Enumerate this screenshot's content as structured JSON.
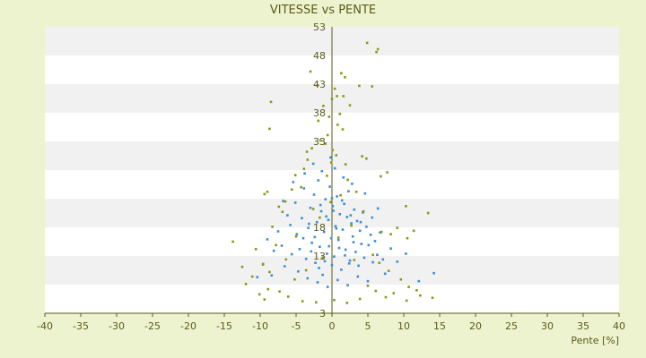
{
  "chart_data": {
    "type": "scatter",
    "title": "VITESSE vs PENTE",
    "xlabel": "Pente [%]",
    "ylabel": "",
    "xlim": [
      -40,
      40
    ],
    "ylim": [
      3,
      53
    ],
    "x_ticks": [
      -40,
      -35,
      -30,
      -25,
      -20,
      -15,
      -10,
      -5,
      0,
      5,
      10,
      15,
      20,
      25,
      30,
      35,
      40
    ],
    "y_ticks": [
      3,
      8,
      13,
      18,
      23,
      28,
      33,
      38,
      43,
      48,
      53
    ],
    "y_tick_labels": [
      "3",
      "",
      "13",
      "18",
      "",
      "",
      "33",
      "38",
      "43",
      "48",
      "53"
    ],
    "grid": "horizontal alternating bands",
    "series": [
      {
        "color": "#3a8fd8",
        "description_hidden": true,
        "points": [
          [
            -6.2,
            20.1
          ],
          [
            -5.8,
            18.4
          ],
          [
            -5.1,
            22.3
          ],
          [
            -4.9,
            16.8
          ],
          [
            -4.5,
            14.2
          ],
          [
            -4.2,
            19.6
          ],
          [
            -3.9,
            24.8
          ],
          [
            -3.6,
            12.5
          ],
          [
            -3.3,
            17.9
          ],
          [
            -3.0,
            21.4
          ],
          [
            -2.8,
            15.3
          ],
          [
            -2.5,
            23.7
          ],
          [
            -2.3,
            11.8
          ],
          [
            -2.1,
            18.9
          ],
          [
            -1.9,
            26.2
          ],
          [
            -1.7,
            14.6
          ],
          [
            -1.5,
            20.8
          ],
          [
            -1.3,
            9.7
          ],
          [
            -1.1,
            17.2
          ],
          [
            -0.9,
            22.9
          ],
          [
            -0.7,
            13.4
          ],
          [
            -0.5,
            19.3
          ],
          [
            -0.3,
            25.1
          ],
          [
            -0.1,
            16.1
          ],
          [
            0.1,
            21.7
          ],
          [
            0.3,
            12.9
          ],
          [
            0.5,
            18.2
          ],
          [
            0.7,
            23.4
          ],
          [
            0.9,
            15.8
          ],
          [
            1.1,
            20.3
          ],
          [
            1.3,
            10.6
          ],
          [
            1.5,
            17.6
          ],
          [
            1.7,
            22.1
          ],
          [
            1.9,
            14.1
          ],
          [
            2.1,
            19.8
          ],
          [
            2.3,
            24.3
          ],
          [
            2.5,
            12.2
          ],
          [
            2.7,
            18.7
          ],
          [
            2.9,
            16.4
          ],
          [
            3.1,
            21.1
          ],
          [
            3.3,
            13.7
          ],
          [
            3.5,
            19.1
          ],
          [
            3.7,
            11.3
          ],
          [
            3.9,
            17.4
          ],
          [
            4.1,
            15.1
          ],
          [
            4.3,
            20.6
          ],
          [
            4.5,
            12.7
          ],
          [
            4.8,
            18.1
          ],
          [
            5.1,
            14.9
          ],
          [
            5.4,
            16.7
          ],
          [
            5.7,
            11.9
          ],
          [
            6.0,
            15.6
          ],
          [
            6.3,
            13.2
          ],
          [
            6.7,
            17.1
          ],
          [
            7.1,
            12.4
          ],
          [
            -7.0,
            14.8
          ],
          [
            -6.6,
            11.2
          ],
          [
            -7.5,
            17.3
          ],
          [
            -8.1,
            13.9
          ],
          [
            -3.4,
            9.1
          ],
          [
            -2.0,
            8.4
          ],
          [
            -0.6,
            7.6
          ],
          [
            0.8,
            8.8
          ],
          [
            2.2,
            7.9
          ],
          [
            3.6,
            9.4
          ],
          [
            5.0,
            8.6
          ],
          [
            -4.7,
            10.3
          ],
          [
            -1.4,
            27.8
          ],
          [
            0.4,
            28.3
          ],
          [
            -2.6,
            29.1
          ],
          [
            -0.2,
            30.2
          ],
          [
            1.6,
            26.7
          ],
          [
            -3.8,
            27.4
          ],
          [
            2.8,
            25.6
          ],
          [
            -5.4,
            25.9
          ],
          [
            4.6,
            23.9
          ],
          [
            -6.8,
            22.6
          ],
          [
            6.4,
            21.3
          ],
          [
            -1.0,
            12.1
          ],
          [
            1.0,
            14.4
          ],
          [
            -2.4,
            16.3
          ],
          [
            2.4,
            11.7
          ],
          [
            -0.8,
            19.9
          ],
          [
            0.6,
            17.8
          ],
          [
            -1.6,
            21.9
          ],
          [
            1.8,
            13.1
          ],
          [
            -3.2,
            18.6
          ],
          [
            3.0,
            15.4
          ],
          [
            -0.4,
            14.7
          ],
          [
            0.2,
            20.9
          ],
          [
            -1.8,
            10.9
          ],
          [
            1.4,
            22.7
          ],
          [
            -2.9,
            13.8
          ],
          [
            2.6,
            20.1
          ],
          [
            -4.0,
            16.1
          ],
          [
            4.0,
            18.9
          ],
          [
            -5.6,
            13.3
          ],
          [
            5.6,
            19.7
          ],
          [
            -0.0,
            23.1
          ],
          [
            0.0,
            11.4
          ],
          [
            8.2,
            14.3
          ],
          [
            9.1,
            12.0
          ],
          [
            10.3,
            13.4
          ],
          [
            -9.0,
            15.9
          ],
          [
            -9.6,
            11.6
          ],
          [
            12.1,
            8.6
          ],
          [
            14.2,
            10.0
          ],
          [
            -10.4,
            9.3
          ],
          [
            7.4,
            9.9
          ],
          [
            -8.4,
            9.6
          ]
        ]
      },
      {
        "color": "#8a9a12",
        "description_hidden": true,
        "points": [
          [
            4.9,
            50.2
          ],
          [
            6.4,
            49.1
          ],
          [
            6.2,
            48.6
          ],
          [
            -3.0,
            45.2
          ],
          [
            -2.0,
            42.8
          ],
          [
            1.3,
            44.9
          ],
          [
            1.8,
            44.2
          ],
          [
            3.8,
            42.7
          ],
          [
            5.6,
            42.6
          ],
          [
            0.4,
            42.2
          ],
          [
            0.7,
            40.9
          ],
          [
            0.0,
            40.4
          ],
          [
            1.6,
            40.9
          ],
          [
            -1.2,
            39.2
          ],
          [
            -8.5,
            39.9
          ],
          [
            2.5,
            39.3
          ],
          [
            -8.7,
            35.2
          ],
          [
            -0.4,
            37.3
          ],
          [
            0.8,
            35.9
          ],
          [
            1.5,
            35.1
          ],
          [
            -1.6,
            33.2
          ],
          [
            -0.9,
            32.6
          ],
          [
            -2.8,
            31.8
          ],
          [
            -3.5,
            31.2
          ],
          [
            -3.4,
            29.8
          ],
          [
            4.2,
            30.4
          ],
          [
            4.8,
            30.0
          ],
          [
            0.6,
            30.6
          ],
          [
            -0.1,
            29.3
          ],
          [
            1.9,
            29.0
          ],
          [
            7.7,
            27.6
          ],
          [
            6.8,
            26.9
          ],
          [
            -5.1,
            27.1
          ],
          [
            -5.6,
            24.6
          ],
          [
            -9.0,
            24.2
          ],
          [
            -9.4,
            23.8
          ],
          [
            -6.5,
            22.5
          ],
          [
            -7.4,
            21.6
          ],
          [
            -6.9,
            20.7
          ],
          [
            10.3,
            21.7
          ],
          [
            13.4,
            20.5
          ],
          [
            11.4,
            17.4
          ],
          [
            10.5,
            16.1
          ],
          [
            9.1,
            17.9
          ],
          [
            8.2,
            16.8
          ],
          [
            -13.8,
            15.5
          ],
          [
            -12.5,
            11.1
          ],
          [
            -10.6,
            14.2
          ],
          [
            -9.6,
            11.5
          ],
          [
            -8.7,
            10.2
          ],
          [
            -11.1,
            9.4
          ],
          [
            -12.0,
            8.1
          ],
          [
            -8.9,
            7.2
          ],
          [
            -10.1,
            6.3
          ],
          [
            -9.4,
            5.4
          ],
          [
            9.6,
            8.9
          ],
          [
            10.7,
            7.6
          ],
          [
            11.8,
            7.0
          ],
          [
            8.6,
            6.5
          ],
          [
            12.3,
            6.1
          ],
          [
            14.0,
            5.7
          ],
          [
            10.4,
            5.2
          ],
          [
            7.5,
            5.8
          ],
          [
            6.1,
            6.9
          ],
          [
            5.0,
            7.8
          ],
          [
            -4.1,
            5.1
          ],
          [
            -2.2,
            4.9
          ],
          [
            0.3,
            5.3
          ],
          [
            2.1,
            4.8
          ],
          [
            3.9,
            5.5
          ],
          [
            -6.1,
            5.9
          ],
          [
            -7.3,
            6.8
          ],
          [
            -5.2,
            8.9
          ],
          [
            -3.6,
            10.5
          ],
          [
            -1.3,
            12.7
          ],
          [
            0.9,
            16.2
          ],
          [
            2.7,
            18.3
          ],
          [
            -1.7,
            19.7
          ],
          [
            -2.6,
            21.2
          ],
          [
            -0.2,
            22.4
          ],
          [
            1.2,
            23.6
          ],
          [
            3.4,
            24.2
          ],
          [
            -4.3,
            25.0
          ],
          [
            2.2,
            26.3
          ],
          [
            -0.7,
            27.0
          ],
          [
            -3.9,
            28.2
          ],
          [
            0.1,
            31.5
          ],
          [
            -0.6,
            34.1
          ],
          [
            1.1,
            37.8
          ],
          [
            -1.9,
            36.6
          ],
          [
            5.7,
            13.2
          ],
          [
            6.6,
            11.8
          ],
          [
            7.9,
            10.4
          ],
          [
            -6.4,
            12.4
          ],
          [
            -7.8,
            14.9
          ],
          [
            -5.0,
            16.4
          ],
          [
            4.4,
            20.8
          ],
          [
            6.9,
            17.2
          ],
          [
            -8.3,
            18.1
          ],
          [
            3.1,
            12.3
          ]
        ]
      }
    ]
  }
}
